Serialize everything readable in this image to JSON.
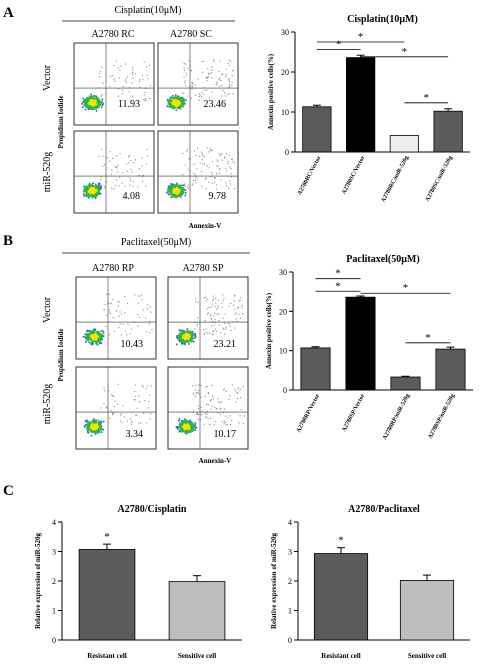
{
  "panels": {
    "A": {
      "label": "A",
      "condition": "Cisplatin(10μM)",
      "col_labels": [
        "A2780 RC",
        "A2780 SC"
      ],
      "row_labels": [
        "Vector",
        "miR-520g"
      ],
      "y_axis": "Propidium Iodide",
      "x_axis": "Annexin-V",
      "quadrant_values": [
        "11.93",
        "23.46",
        "4.08",
        "9.78"
      ]
    },
    "B": {
      "label": "B",
      "condition": "Paclitaxel(50μM)",
      "col_labels": [
        "A2780 RP",
        "A2780 SP"
      ],
      "row_labels": [
        "Vector",
        "miR-520g"
      ],
      "y_axis": "Propidium Iodide",
      "x_axis": "Annexin-V",
      "quadrant_values": [
        "10.43",
        "23.21",
        "3.34",
        "10.17"
      ]
    },
    "C": {
      "label": "C"
    }
  },
  "colors": {
    "dark_gray": "#5b5b5b",
    "black": "#000000",
    "light_gray": "#bdbdbd",
    "white_bar": "#e8e8e8"
  },
  "chart_data": [
    {
      "type": "bar",
      "title": "Cisplatin(10μM)",
      "ylabel": "Annexin positive cells(%)",
      "ylim": [
        0,
        30
      ],
      "yticks": [
        0,
        10,
        20,
        30
      ],
      "categories": [
        "A2780RC/Vector",
        "A2780SC/Vector",
        "A2780RC/miR-520g",
        "A2780SC/miR-520g"
      ],
      "values": [
        11.3,
        23.6,
        4.1,
        10.2
      ],
      "errors": [
        0.4,
        0.6,
        0.0,
        0.6
      ],
      "bar_colors": [
        "#5b5b5b",
        "#000000",
        "#ececec",
        "#5b5b5b"
      ],
      "significance": [
        "*",
        "*",
        "*",
        "*"
      ]
    },
    {
      "type": "bar",
      "title": "Paclitaxel(50μM)",
      "ylabel": "Annexin positive cells(%)",
      "ylim": [
        0,
        30
      ],
      "yticks": [
        0,
        10,
        20,
        30
      ],
      "categories": [
        "A2780RP/Vector",
        "A2780SP/Vector",
        "A2780RP/miR-520g",
        "A2780SP/miR-520g"
      ],
      "values": [
        10.7,
        23.6,
        3.3,
        10.4
      ],
      "errors": [
        0.3,
        0.3,
        0.2,
        0.5
      ],
      "bar_colors": [
        "#5b5b5b",
        "#000000",
        "#5b5b5b",
        "#5b5b5b"
      ],
      "significance": [
        "*",
        "*",
        "*",
        "*"
      ]
    },
    {
      "type": "bar",
      "title": "A2780/Cisplatin",
      "ylabel": "Relative expression of miR-520g",
      "ylim": [
        0,
        4
      ],
      "yticks": [
        0,
        1,
        2,
        3,
        4
      ],
      "categories": [
        "Resistant cell",
        "Sensitive cell"
      ],
      "values": [
        3.07,
        1.98
      ],
      "errors": [
        0.18,
        0.2
      ],
      "bar_colors": [
        "#5b5b5b",
        "#bdbdbd"
      ],
      "significance": [
        "*"
      ]
    },
    {
      "type": "bar",
      "title": "A2780/Paclitaxel",
      "ylabel": "Relative expression of miR-520g",
      "ylim": [
        0,
        4
      ],
      "yticks": [
        0,
        1,
        2,
        3,
        4
      ],
      "categories": [
        "Resistant cell",
        "Sensitive cell"
      ],
      "values": [
        2.93,
        2.02
      ],
      "errors": [
        0.2,
        0.18
      ],
      "bar_colors": [
        "#5b5b5b",
        "#bdbdbd"
      ],
      "significance": [
        "*"
      ]
    }
  ]
}
